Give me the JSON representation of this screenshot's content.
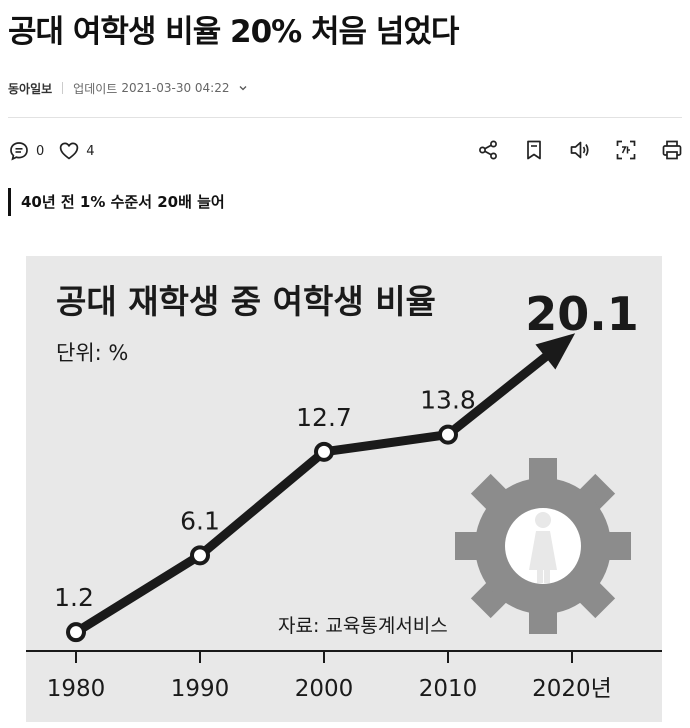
{
  "article": {
    "headline": "공대 여학생 비율 20% 처음 넘었다",
    "press": "동아일보",
    "updated_label": "업데이트",
    "updated_time": "2021-03-30 04:22",
    "comment_count": "0",
    "like_count": "4",
    "subheadline": "40년 전 1% 수준서 20배 늘어"
  },
  "icons": {
    "comment": "comment-icon",
    "like": "heart-icon",
    "share": "share-icon",
    "bookmark": "bookmark-icon",
    "listen": "speaker-icon",
    "translate": "text-scan-icon",
    "print": "print-icon"
  },
  "colors": {
    "chart_background": "#e8e8e8",
    "line": "#1a1a1a",
    "gear": "#8c8c8c"
  },
  "chart_data": {
    "type": "line",
    "title": "공대 재학생 중 여학생 비율",
    "unit": "단위: %",
    "source": "자료: 교육통계서비스",
    "x": [
      1980,
      1990,
      2000,
      2010,
      2020
    ],
    "x_tick_labels": [
      "1980",
      "1990",
      "2000",
      "2010",
      "2020년"
    ],
    "series": [
      {
        "values": [
          1.2,
          6.1,
          12.7,
          13.8,
          20.1
        ]
      }
    ],
    "data_labels": [
      "1.2",
      "6.1",
      "12.7",
      "13.8",
      "20.1"
    ],
    "ylim": [
      0,
      22
    ],
    "grid": false,
    "last_point_style": "arrow"
  }
}
